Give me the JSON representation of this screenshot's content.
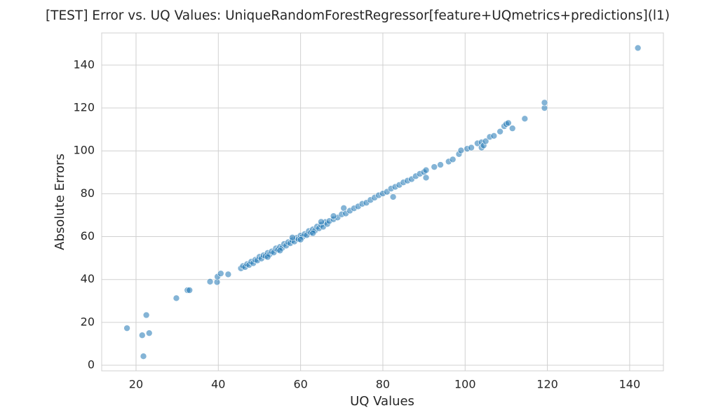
{
  "chart_data": {
    "type": "scatter",
    "title": "[TEST] Error vs. UQ Values: UniqueRandomForestRegressor[feature+UQmetrics+predictions](l1)",
    "x_label": "UQ Values",
    "y_label": "Absolute Errors",
    "color": "#1f77b4",
    "grid": true,
    "xlim": [
      11.65,
      148.2
    ],
    "ylim": [
      -2.6,
      155.0
    ],
    "xticks": [
      20,
      40,
      60,
      80,
      100,
      120,
      140
    ],
    "yticks": [
      0,
      20,
      40,
      60,
      80,
      100,
      120,
      140
    ],
    "x": [
      17.8,
      21.5,
      22.5,
      23.2,
      21.8,
      29.8,
      32.5,
      33,
      38,
      39.7,
      39.8,
      40.6,
      42.4,
      45.5,
      46,
      46.5,
      47,
      47.5,
      48,
      48.5,
      49,
      49.5,
      50,
      50.5,
      51,
      51.5,
      52,
      52.5,
      53,
      53.5,
      54,
      54.5,
      55,
      55.5,
      56,
      56.5,
      57,
      57.5,
      58,
      58.5,
      59,
      59.5,
      60,
      60.5,
      61,
      61.5,
      62,
      62.5,
      63,
      63.5,
      64,
      64.5,
      65,
      65.5,
      66,
      66.5,
      67,
      68,
      69,
      70,
      70.5,
      71,
      72,
      73,
      74,
      75,
      76,
      77,
      78,
      79,
      80,
      81,
      82,
      82.5,
      83,
      84,
      85,
      86,
      87,
      88,
      89,
      90,
      55,
      60,
      65,
      58,
      52,
      63,
      68,
      90.5,
      90.5,
      92.5,
      94,
      96,
      97,
      98.5,
      99,
      100.5,
      101.5,
      103,
      104,
      104,
      104.5,
      105,
      106,
      107,
      108.5,
      109.5,
      110,
      110.5,
      111.5,
      114.5,
      119.3,
      119.3,
      142
    ],
    "values": [
      17.3,
      14,
      23.4,
      15,
      4.2,
      31.3,
      35,
      35,
      39,
      38.8,
      41.3,
      42.8,
      42.4,
      45.2,
      46.3,
      45.8,
      47.2,
      46.8,
      48.3,
      47.6,
      49.2,
      48.9,
      50.6,
      49.8,
      51.3,
      50.9,
      52.4,
      51.7,
      53.1,
      52.6,
      54.5,
      53.9,
      55.2,
      54.7,
      56.6,
      55.8,
      57.4,
      56.9,
      58.3,
      57.7,
      59.4,
      58.8,
      60.5,
      59.9,
      61.2,
      60.7,
      62.6,
      61.9,
      63.4,
      62.8,
      64.7,
      63.9,
      65.5,
      64.6,
      66.8,
      65.9,
      67.3,
      68.1,
      68.9,
      70.4,
      73.3,
      70.8,
      72.1,
      73.2,
      74.1,
      75.3,
      75.8,
      77.1,
      78.2,
      79.3,
      80.1,
      80.9,
      82.4,
      78.5,
      83.2,
      84.1,
      85.3,
      86.1,
      86.8,
      88.2,
      89.3,
      90.1,
      53.5,
      58.6,
      66.9,
      59.6,
      50.5,
      61.6,
      69.6,
      91,
      87.5,
      92.5,
      93.5,
      95,
      96,
      98.5,
      100.2,
      101,
      101.5,
      103.5,
      104,
      101.5,
      102.5,
      104.5,
      106.5,
      107,
      109,
      111.5,
      112.5,
      113,
      110.5,
      115,
      120,
      122.5,
      148
    ]
  }
}
